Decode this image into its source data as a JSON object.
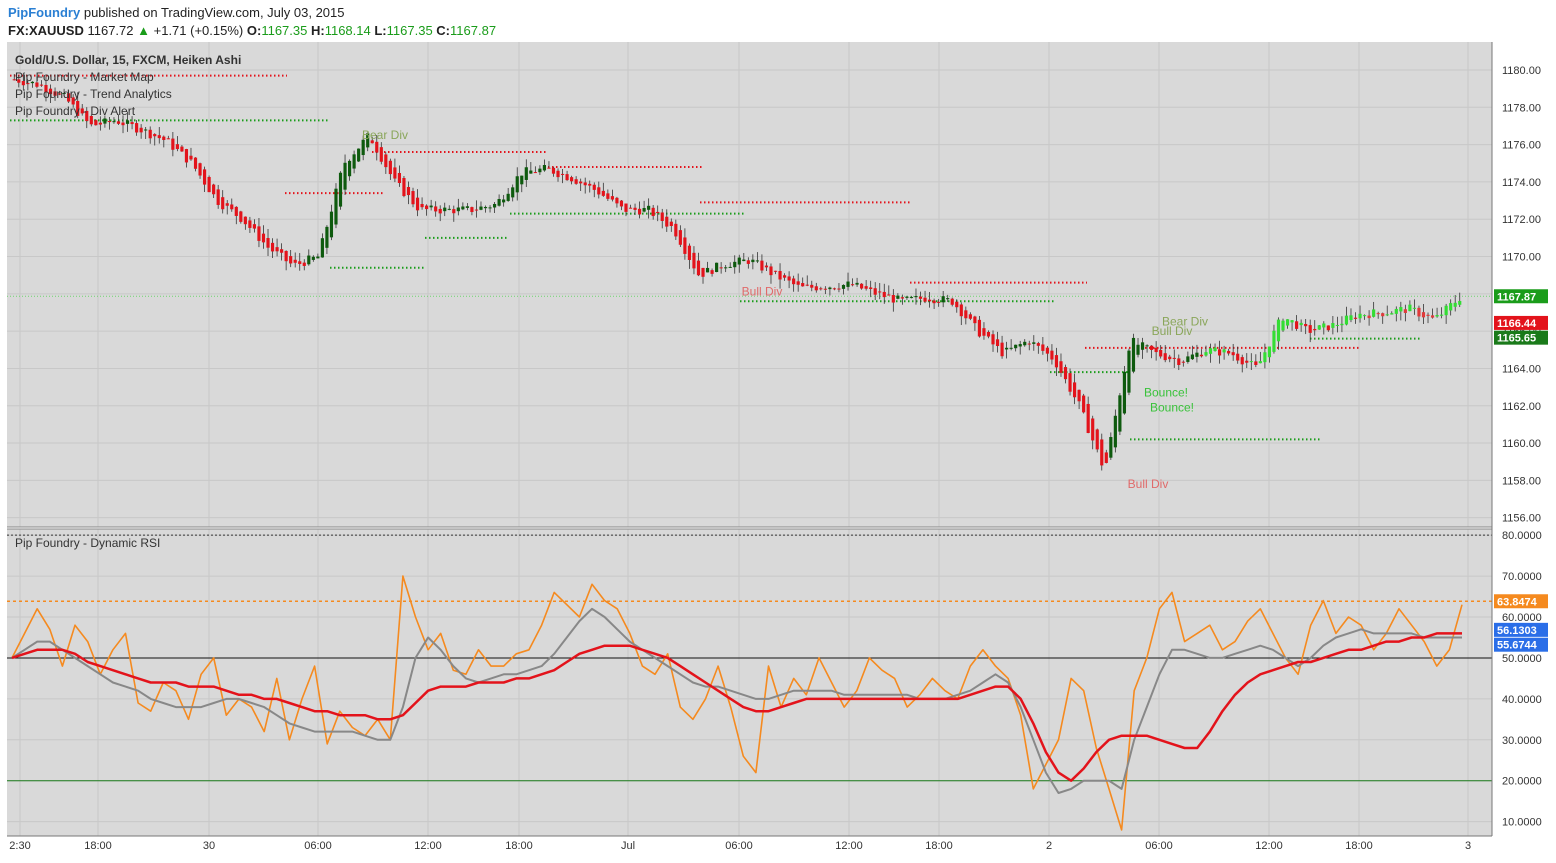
{
  "header": {
    "publisher": "PipFoundry",
    "published_text": "published on TradingView.com, July 03, 2015",
    "symbol": "FX:XAUUSD",
    "last": "1167.72",
    "change": "+1.71 (+0.15%)",
    "o_label": "O:",
    "o": "1167.35",
    "h_label": "H:",
    "h": "1168.14",
    "l_label": "L:",
    "l": "1167.35",
    "c_label": "C:",
    "c": "1167.87"
  },
  "price_panel": {
    "title": "Gold/U.S. Dollar, 15, FXCM, Heiken Ashi",
    "indicators": [
      "Pip Foundry - Market Map",
      "Pip Foundry - Trend Analytics",
      "Pip Foundry - Div Alert"
    ],
    "y_ticks": [
      "1156.00",
      "1158.00",
      "1160.00",
      "1162.00",
      "1164.00",
      "1166.00",
      "1168.00",
      "1170.00",
      "1172.00",
      "1174.00",
      "1176.00",
      "1178.00",
      "1180.00"
    ],
    "price_labels": [
      {
        "text": "1167.87",
        "value": 1167.87,
        "color": "#1a9c1a"
      },
      {
        "text": "1166.44",
        "value": 1166.44,
        "color": "#e3131b"
      },
      {
        "text": "1165.65",
        "value": 1165.65,
        "color": "#1a7a1a"
      }
    ],
    "annotations": [
      {
        "text": "Bear Div",
        "x": 385,
        "value": 1176.3,
        "color": "#8aa65a"
      },
      {
        "text": "Bull Div",
        "x": 762,
        "value": 1167.9,
        "color": "#e06a6a"
      },
      {
        "text": "Bull Div",
        "x": 1148,
        "value": 1157.6,
        "color": "#e06a6a"
      },
      {
        "text": "Bear Div",
        "x": 1185,
        "value": 1166.3,
        "color": "#8aa65a"
      },
      {
        "text": "Bull Div",
        "x": 1172,
        "value": 1165.8,
        "color": "#8aa65a"
      },
      {
        "text": "Bounce!",
        "x": 1166,
        "value": 1162.5,
        "color": "#39c23a"
      },
      {
        "text": "Bounce!",
        "x": 1172,
        "value": 1161.7,
        "color": "#39c23a"
      }
    ]
  },
  "rsi_panel": {
    "title": "Pip Foundry - Dynamic RSI",
    "y_ticks": [
      "10.0000",
      "20.0000",
      "30.0000",
      "40.0000",
      "50.0000",
      "60.0000",
      "70.0000",
      "80.0000"
    ],
    "value_labels": [
      {
        "text": "63.8474",
        "value": 63.8474,
        "color": "#f58a1f"
      },
      {
        "text": "56.1303",
        "value": 56.1303,
        "color": "#2a6ee8"
      },
      {
        "text": "55.6744",
        "value": 55.6744,
        "color": "#2a6ee8"
      }
    ]
  },
  "x_ticks": [
    "2:30",
    "18:00",
    "30",
    "06:00",
    "12:00",
    "18:00",
    "Jul",
    "06:00",
    "12:00",
    "18:00",
    "2",
    "06:00",
    "12:00",
    "18:00",
    "3"
  ],
  "chart_data": [
    {
      "type": "candlestick",
      "title": "Gold/U.S. Dollar, 15, FXCM, Heiken Ashi",
      "ylim": [
        1155.5,
        1181.5
      ],
      "grid": true,
      "last_value": 1167.87,
      "close_approx": [
        1179.5,
        1179.2,
        1178.5,
        1177.0,
        1177.3,
        1176.8,
        1176.2,
        1175.0,
        1173.0,
        1172.0,
        1170.5,
        1169.5,
        1170.0,
        1175.0,
        1176.5,
        1174.0,
        1172.5,
        1172.5,
        1172.5,
        1172.8,
        1174.5,
        1174.7,
        1174.2,
        1173.5,
        1172.5,
        1172.5,
        1171.5,
        1169.0,
        1169.6,
        1169.8,
        1169.0,
        1168.3,
        1168.4,
        1168.5,
        1168.0,
        1167.6,
        1167.8,
        1167.6,
        1166.0,
        1164.8,
        1165.5,
        1164.5,
        1162.0,
        1158.5,
        1165.5,
        1164.8,
        1164.4,
        1165.0,
        1164.8,
        1164.0,
        1166.8,
        1166.0,
        1166.3,
        1166.9,
        1167.0,
        1167.2,
        1166.6,
        1167.8
      ],
      "levels": [
        {
          "value": 1179.7,
          "color": "#e3131b"
        },
        {
          "value": 1177.3,
          "color": "#1a9c1a"
        },
        {
          "value": 1175.6,
          "color": "#e3131b"
        },
        {
          "value": 1173.4,
          "color": "#e3131b"
        },
        {
          "value": 1174.8,
          "color": "#e3131b"
        },
        {
          "value": 1172.9,
          "color": "#e3131b"
        },
        {
          "value": 1172.3,
          "color": "#1a9c1a"
        },
        {
          "value": 1171.0,
          "color": "#1a9c1a"
        },
        {
          "value": 1169.4,
          "color": "#1a9c1a"
        },
        {
          "value": 1168.6,
          "color": "#e3131b"
        },
        {
          "value": 1167.6,
          "color": "#1a9c1a"
        },
        {
          "value": 1165.1,
          "color": "#e3131b"
        },
        {
          "value": 1163.8,
          "color": "#1a9c1a"
        },
        {
          "value": 1160.2,
          "color": "#1a9c1a"
        },
        {
          "value": 1165.6,
          "color": "#1a9c1a"
        }
      ]
    },
    {
      "type": "line",
      "title": "Pip Foundry - Dynamic RSI",
      "ylim": [
        6.5,
        81.5
      ],
      "hlines": [
        {
          "value": 80,
          "color": "#333333"
        },
        {
          "value": 50,
          "color": "#111111"
        },
        {
          "value": 20,
          "color": "#1a7a1a"
        },
        {
          "value": 63.8474,
          "color": "#f58a1f"
        }
      ],
      "series": [
        {
          "color": "#f58a1f",
          "values": [
            50,
            56,
            62,
            57,
            48,
            58,
            54,
            46,
            52,
            56,
            39,
            37,
            44,
            42,
            35,
            46,
            50,
            36,
            40,
            38,
            32,
            45,
            30,
            40,
            48,
            29,
            37,
            33,
            31,
            35,
            30,
            70,
            60,
            52,
            56,
            47,
            46,
            52,
            48,
            48,
            51,
            52,
            58,
            66,
            63,
            60,
            68,
            64,
            62,
            56,
            48,
            46,
            51,
            38,
            35,
            40,
            48,
            38,
            26,
            22,
            48,
            38,
            45,
            41,
            50,
            44,
            38,
            42,
            50,
            47,
            45,
            38,
            41,
            45,
            42,
            40,
            48,
            52,
            48,
            45,
            36,
            18,
            24,
            30,
            45,
            42,
            28,
            18,
            8,
            42,
            50,
            62,
            66,
            54,
            56,
            58,
            52,
            54,
            59,
            62,
            56,
            50,
            46,
            58,
            64,
            56,
            60,
            58,
            52,
            56,
            62,
            58,
            54,
            48,
            52,
            63
          ]
        },
        {
          "color": "#888888",
          "values": [
            50,
            52,
            54,
            54,
            52,
            50,
            48,
            46,
            44,
            43,
            42,
            40,
            39,
            38,
            38,
            38,
            39,
            40,
            40,
            39,
            38,
            36,
            34,
            33,
            32,
            32,
            32,
            32,
            31,
            30,
            30,
            38,
            50,
            55,
            52,
            48,
            45,
            44,
            45,
            46,
            46,
            47,
            48,
            51,
            55,
            59,
            62,
            60,
            57,
            54,
            52,
            50,
            48,
            46,
            44,
            43,
            43,
            42,
            41,
            40,
            40,
            41,
            42,
            42,
            42,
            42,
            41,
            41,
            41,
            41,
            41,
            41,
            40,
            40,
            40,
            41,
            42,
            44,
            46,
            44,
            38,
            30,
            22,
            17,
            18,
            20,
            20,
            20,
            18,
            30,
            38,
            46,
            52,
            52,
            51,
            50,
            50,
            51,
            52,
            53,
            52,
            50,
            48,
            50,
            53,
            55,
            56,
            57,
            56,
            56,
            56,
            56,
            55,
            55,
            55,
            55
          ]
        },
        {
          "color": "#e3131b",
          "values": [
            50,
            51,
            52,
            52,
            52,
            51,
            49,
            48,
            47,
            46,
            45,
            44,
            44,
            44,
            43,
            43,
            43,
            42,
            41,
            41,
            40,
            40,
            39,
            38,
            37,
            37,
            36,
            36,
            36,
            35,
            35,
            36,
            39,
            42,
            43,
            43,
            43,
            44,
            44,
            44,
            45,
            45,
            46,
            47,
            49,
            51,
            52,
            53,
            53,
            53,
            52,
            51,
            50,
            48,
            46,
            44,
            42,
            40,
            38,
            37,
            37,
            38,
            39,
            40,
            40,
            40,
            40,
            40,
            40,
            40,
            40,
            40,
            40,
            40,
            40,
            40,
            41,
            42,
            43,
            43,
            40,
            34,
            27,
            22,
            20,
            23,
            27,
            30,
            31,
            31,
            31,
            30,
            29,
            28,
            28,
            32,
            37,
            41,
            44,
            46,
            47,
            48,
            49,
            49,
            50,
            51,
            52,
            52,
            53,
            54,
            54,
            55,
            55,
            56,
            56,
            56
          ]
        }
      ]
    }
  ]
}
